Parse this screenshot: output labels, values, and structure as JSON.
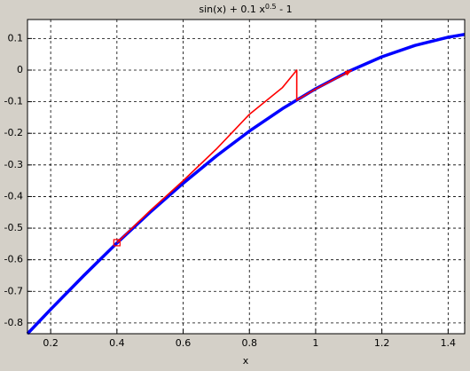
{
  "chart_data": {
    "type": "line",
    "title": [
      "sin(x) + 0.1 x",
      "0.5",
      " - 1"
    ],
    "x_label": "x",
    "xlim": [
      0.13,
      1.45
    ],
    "ylim": [
      -0.834,
      0.16
    ],
    "xticks": [
      0.2,
      0.4,
      0.6,
      0.8,
      1,
      1.2,
      1.4
    ],
    "yticks": [
      0.1,
      0,
      -0.1,
      -0.2,
      -0.3,
      -0.4,
      -0.5,
      -0.6,
      -0.7,
      -0.8
    ],
    "grid": true,
    "series": [
      {
        "color": "#0000ff",
        "x": [
          0.13,
          0.2,
          0.3,
          0.4,
          0.5,
          0.6,
          0.7,
          0.8,
          0.9,
          1.0,
          1.1,
          1.2,
          1.3,
          1.4,
          1.45
        ],
        "values": [
          -0.834,
          -0.757,
          -0.65,
          -0.547,
          -0.45,
          -0.358,
          -0.272,
          -0.193,
          -0.122,
          -0.059,
          -0.004,
          0.042,
          0.078,
          0.104,
          0.113
        ]
      },
      {
        "color": "#ff0000",
        "x": [
          0.4,
          0.5,
          0.6,
          0.7,
          0.8,
          0.9,
          0.943,
          0.943,
          1.0,
          1.11
        ],
        "values": [
          -0.546,
          -0.445,
          -0.35,
          -0.25,
          -0.14,
          -0.055,
          0,
          -0.095,
          -0.06,
          0
        ]
      }
    ]
  }
}
